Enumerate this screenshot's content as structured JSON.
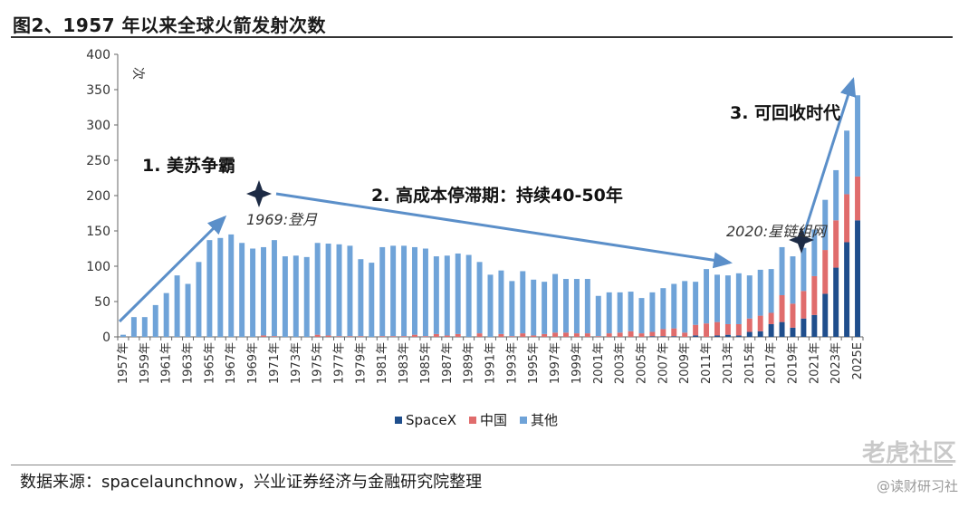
{
  "title": "图2、1957 年以来全球火箭发射次数",
  "source": "数据来源：spacelaunchnow，兴业证券经济与金融研究院整理",
  "watermark": "老虎社区",
  "watermark_sub": "@读财研习社",
  "colors": {
    "spacex": "#1f4e8c",
    "china": "#e06c6c",
    "other": "#6fa3d8",
    "arrow": "#5b8fc9",
    "star": "#1d2b45"
  },
  "chart_data": {
    "type": "bar",
    "stacked": true,
    "ylabel": "次",
    "ylim": [
      0,
      400
    ],
    "yticks": [
      0,
      50,
      100,
      150,
      200,
      250,
      300,
      350,
      400
    ],
    "categories": [
      "1957年",
      "1958年",
      "1959年",
      "1960年",
      "1961年",
      "1962年",
      "1963年",
      "1964年",
      "1965年",
      "1966年",
      "1967年",
      "1968年",
      "1969年",
      "1970年",
      "1971年",
      "1972年",
      "1973年",
      "1974年",
      "1975年",
      "1976年",
      "1977年",
      "1978年",
      "1979年",
      "1980年",
      "1981年",
      "1982年",
      "1983年",
      "1984年",
      "1985年",
      "1986年",
      "1987年",
      "1988年",
      "1989年",
      "1990年",
      "1991年",
      "1992年",
      "1993年",
      "1994年",
      "1995年",
      "1996年",
      "1997年",
      "1998年",
      "1999年",
      "2000年",
      "2001年",
      "2002年",
      "2003年",
      "2004年",
      "2005年",
      "2006年",
      "2007年",
      "2008年",
      "2009年",
      "2010年",
      "2011年",
      "2012年",
      "2013年",
      "2014年",
      "2015年",
      "2016年",
      "2017年",
      "2018年",
      "2019年",
      "2020年",
      "2021年",
      "2022年",
      "2023年",
      "2024年",
      "2025E"
    ],
    "tick_labels": [
      "1957年",
      "1959年",
      "1961年",
      "1963年",
      "1965年",
      "1967年",
      "1969年",
      "1971年",
      "1973年",
      "1975年",
      "1977年",
      "1979年",
      "1981年",
      "1983年",
      "1985年",
      "1987年",
      "1989年",
      "1991年",
      "1993年",
      "1995年",
      "1997年",
      "1999年",
      "2001年",
      "2003年",
      "2005年",
      "2007年",
      "2009年",
      "2011年",
      "2013年",
      "2015年",
      "2017年",
      "2019年",
      "2021年",
      "2023年",
      "2025E"
    ],
    "series": [
      {
        "name": "SpaceX",
        "values": [
          0,
          0,
          0,
          0,
          0,
          0,
          0,
          0,
          0,
          0,
          0,
          0,
          0,
          0,
          0,
          0,
          0,
          0,
          0,
          0,
          0,
          0,
          0,
          0,
          0,
          0,
          0,
          0,
          0,
          0,
          0,
          0,
          0,
          0,
          0,
          0,
          0,
          0,
          0,
          0,
          0,
          0,
          0,
          0,
          0,
          0,
          0,
          0,
          0,
          1,
          1,
          1,
          0,
          2,
          0,
          2,
          3,
          2,
          7,
          8,
          18,
          21,
          13,
          26,
          31,
          61,
          98,
          134,
          165
        ]
      },
      {
        "name": "中国",
        "values": [
          0,
          0,
          0,
          0,
          0,
          0,
          0,
          0,
          0,
          0,
          0,
          0,
          0,
          2,
          1,
          0,
          0,
          0,
          3,
          2,
          1,
          1,
          1,
          0,
          1,
          1,
          1,
          3,
          1,
          4,
          2,
          4,
          0,
          5,
          0,
          4,
          1,
          5,
          2,
          4,
          6,
          6,
          5,
          5,
          1,
          5,
          6,
          8,
          5,
          6,
          10,
          11,
          6,
          15,
          19,
          19,
          15,
          16,
          19,
          22,
          16,
          38,
          34,
          39,
          55,
          62,
          67,
          68,
          62
        ]
      },
      {
        "name": "其他",
        "values": [
          3,
          28,
          28,
          45,
          62,
          87,
          75,
          106,
          137,
          140,
          145,
          133,
          125,
          125,
          136,
          114,
          115,
          113,
          130,
          130,
          130,
          128,
          109,
          105,
          126,
          128,
          128,
          124,
          124,
          110,
          113,
          114,
          116,
          101,
          88,
          90,
          78,
          88,
          79,
          74,
          83,
          76,
          77,
          77,
          57,
          58,
          57,
          56,
          50,
          56,
          58,
          63,
          73,
          61,
          77,
          67,
          69,
          72,
          61,
          65,
          62,
          68,
          67,
          61,
          66,
          71,
          71,
          90,
          115
        ]
      }
    ],
    "annotations": [
      {
        "id": "ann1",
        "text": "1. 美苏争霸"
      },
      {
        "id": "ann2",
        "text": "2. 高成本停滞期：持续40-50年"
      },
      {
        "id": "ann3",
        "text": "3. 可回收时代"
      },
      {
        "id": "ann4",
        "text": "1969:登月"
      },
      {
        "id": "ann5",
        "text": "2020:星链组网"
      }
    ],
    "legend": {
      "position": "bottom"
    }
  }
}
